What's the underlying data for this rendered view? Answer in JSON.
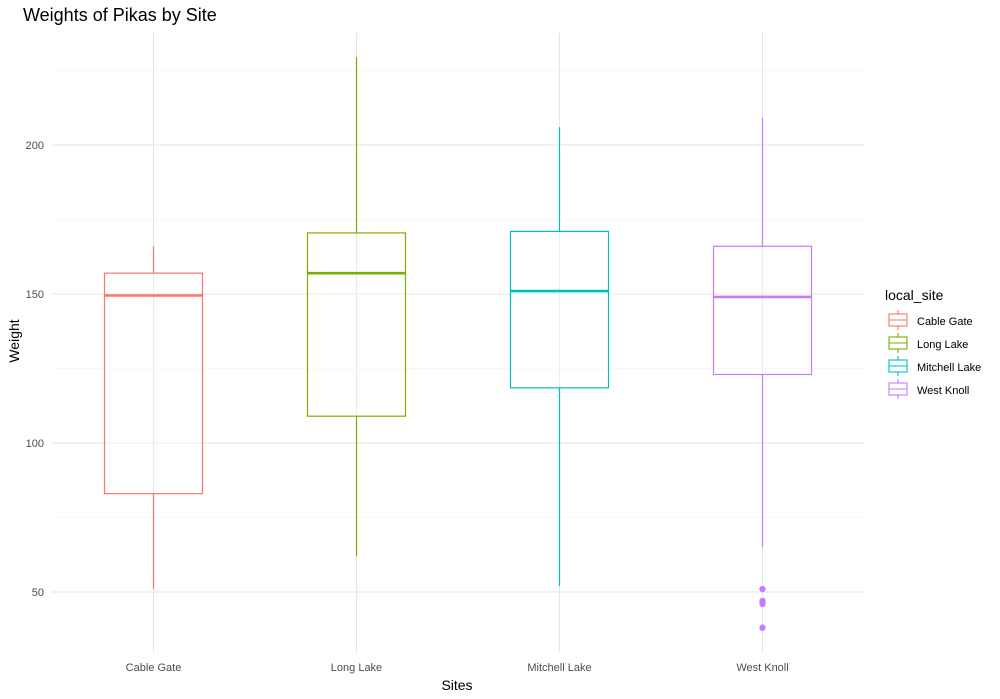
{
  "chart_data": {
    "type": "boxplot",
    "title": "Weights of Pikas by Site",
    "xlabel": "Sites",
    "ylabel": "Weight",
    "categories": [
      "Cable Gate",
      "Long Lake",
      "Mitchell Lake",
      "West Knoll"
    ],
    "ylim": [
      25,
      237
    ],
    "yticks": [
      50,
      100,
      150,
      200
    ],
    "grid": true,
    "legend": {
      "title": "local_site",
      "placement": "right",
      "entries": [
        "Cable Gate",
        "Long Lake",
        "Mitchell Lake",
        "West Knoll"
      ]
    },
    "series": [
      {
        "name": "Cable Gate",
        "color": "#F8766D",
        "min": 51,
        "q1": 83,
        "median": 149.5,
        "q3": 157,
        "max": 166,
        "outliers": []
      },
      {
        "name": "Long Lake",
        "color": "#7CAE00",
        "min": 62,
        "q1": 109,
        "median": 157,
        "q3": 170.5,
        "max": 229.5,
        "outliers": []
      },
      {
        "name": "Mitchell Lake",
        "color": "#00BFC4",
        "min": 52,
        "q1": 118.5,
        "median": 151,
        "q3": 171,
        "max": 206,
        "outliers": []
      },
      {
        "name": "West Knoll",
        "color": "#C77CFF",
        "min": 65,
        "q1": 123,
        "median": 149,
        "q3": 166,
        "max": 209,
        "outliers": [
          51,
          47,
          46,
          38
        ]
      }
    ]
  }
}
